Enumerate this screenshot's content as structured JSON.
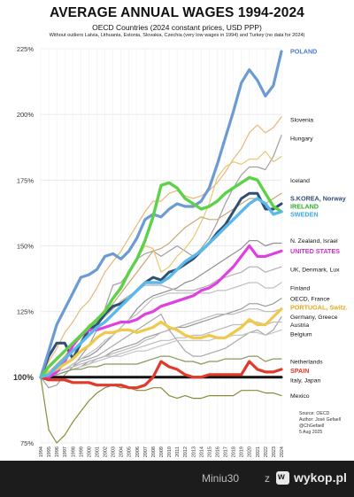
{
  "title": "AVERAGE ANNUAL WAGES 1994-2024",
  "subtitle": "OECD Countries (2024 constant prices, USD PPP)",
  "note": "Without outliers Latvia, Lithuania, Estonia, Slovakia, Czechia (very low wages in 1994) and Turkey (no data for 2024)",
  "source": [
    "Source: OECD",
    "Author: José Gefaell",
    "@ChGefaell",
    "5 Aug 2025"
  ],
  "footer": {
    "user": "Miniu30",
    "separator": "z",
    "brand": "wykop.pl",
    "logo_icon": "wykop-logo-icon"
  },
  "chart_data": {
    "type": "line",
    "x": [
      1994,
      1995,
      1996,
      1997,
      1998,
      1999,
      2000,
      2001,
      2002,
      2003,
      2004,
      2005,
      2006,
      2007,
      2008,
      2009,
      2010,
      2011,
      2012,
      2013,
      2014,
      2015,
      2016,
      2017,
      2018,
      2019,
      2020,
      2021,
      2022,
      2023,
      2024
    ],
    "x_tick_labels": [
      "1994",
      "1995",
      "1996",
      "1997",
      "1998",
      "1999",
      "2000",
      "2001",
      "2002",
      "2003",
      "2004",
      "2005",
      "2006",
      "2007",
      "2008",
      "2009",
      "2010",
      "2011",
      "2012",
      "2013",
      "2014",
      "2015",
      "2016",
      "2017",
      "2018",
      "2019",
      "2020",
      "2021",
      "2022",
      "2023",
      "2024"
    ],
    "ylim": [
      75,
      225
    ],
    "y_ticks": [
      75,
      100,
      125,
      150,
      175,
      200,
      225
    ],
    "y_tick_labels": [
      "75%",
      "100%",
      "125%",
      "150%",
      "175%",
      "200%",
      "225%"
    ],
    "baseline": 100,
    "series": [
      {
        "name": "POLAND",
        "color": "#6b9bd2",
        "width": 3.2,
        "values": [
          100,
          110,
          120,
          126,
          132,
          138,
          139,
          141,
          146,
          147,
          145,
          148,
          153,
          160,
          162,
          161,
          164,
          166,
          165,
          165,
          167,
          172,
          181,
          191,
          201,
          212,
          217,
          213,
          207,
          211,
          224
        ]
      },
      {
        "name": "S.KOREA",
        "color": "#2f4f73",
        "width": 3.0,
        "values": [
          100,
          108,
          113,
          113,
          107,
          113,
          118,
          120,
          124,
          127,
          128,
          130,
          133,
          136,
          138,
          137,
          140,
          141,
          143,
          145,
          148,
          151,
          155,
          158,
          163,
          168,
          170,
          170,
          164,
          164,
          166
        ]
      },
      {
        "name": "IRELAND",
        "color": "#5ed14a",
        "width": 3.4,
        "values": [
          100,
          104,
          107,
          110,
          113,
          116,
          119,
          122,
          125,
          130,
          134,
          140,
          145,
          152,
          161,
          173,
          174,
          172,
          168,
          166,
          164,
          165,
          167,
          170,
          172,
          174,
          176,
          175,
          170,
          165,
          163
        ]
      },
      {
        "name": "SWEDEN",
        "color": "#5bb8ea",
        "width": 3.4,
        "values": [
          100,
          101,
          104,
          107,
          110,
          113,
          116,
          119,
          121,
          124,
          127,
          130,
          133,
          136,
          136,
          136,
          138,
          141,
          144,
          146,
          148,
          151,
          154,
          157,
          160,
          163,
          166,
          168,
          166,
          162,
          163
        ]
      },
      {
        "name": "UNITED STATES",
        "color": "#e040e0",
        "width": 3.2,
        "values": [
          100,
          100,
          102,
          106,
          112,
          116,
          118,
          118,
          119,
          120,
          121,
          121,
          122,
          124,
          125,
          127,
          128,
          129,
          130,
          131,
          133,
          134,
          136,
          139,
          142,
          146,
          150,
          146,
          146,
          147,
          148
        ]
      },
      {
        "name": "PORTUGAL",
        "color": "#f0c84a",
        "width": 3.2,
        "values": [
          100,
          102,
          103,
          105,
          107,
          110,
          112,
          115,
          117,
          117,
          118,
          118,
          117,
          118,
          119,
          121,
          119,
          118,
          116,
          115,
          115,
          116,
          115,
          115,
          117,
          119,
          122,
          120,
          120,
          123,
          126
        ]
      },
      {
        "name": "SPAIN",
        "color": "#e03a2a",
        "width": 3.2,
        "values": [
          100,
          99,
          99,
          99,
          98,
          98,
          98,
          97,
          97,
          97,
          97,
          96,
          96,
          97,
          100,
          106,
          104,
          103,
          101,
          100,
          100,
          101,
          101,
          101,
          101,
          101,
          106,
          103,
          102,
          102,
          103
        ]
      },
      {
        "name": "Italy, Japan",
        "color": "#111111",
        "width": 3.0,
        "values": [
          100,
          100,
          100,
          100,
          100,
          100,
          100,
          100,
          100,
          100,
          100,
          100,
          100,
          100,
          100,
          100,
          100,
          100,
          100,
          100,
          100,
          100,
          100,
          100,
          100,
          100,
          100,
          100,
          100,
          100,
          100
        ]
      },
      {
        "name": "Mexico",
        "color": "#8a8a3a",
        "width": 1.2,
        "values": [
          100,
          80,
          75,
          78,
          83,
          87,
          91,
          94,
          96,
          97,
          96,
          96,
          95,
          95,
          96,
          96,
          93,
          92,
          93,
          92,
          92,
          93,
          93,
          93,
          93,
          95,
          95,
          95,
          94,
          94,
          93
        ]
      },
      {
        "name": "Slovenia",
        "color": "#e8b878",
        "width": 1.2,
        "values": [
          100,
          106,
          111,
          117,
          121,
          126,
          129,
          134,
          140,
          144,
          148,
          153,
          158,
          163,
          167,
          167,
          170,
          171,
          169,
          168,
          169,
          171,
          174,
          178,
          183,
          187,
          193,
          196,
          193,
          195,
          199
        ]
      },
      {
        "name": "Hungary",
        "color": "#a0a0a0",
        "width": 1.2,
        "values": [
          100,
          96,
          97,
          101,
          104,
          108,
          112,
          118,
          126,
          135,
          136,
          140,
          145,
          147,
          148,
          146,
          148,
          150,
          148,
          146,
          149,
          153,
          159,
          166,
          172,
          177,
          180,
          180,
          179,
          184,
          192
        ]
      },
      {
        "name": "Iceland",
        "color": "#e8c870",
        "width": 1.2,
        "values": [
          100,
          102,
          104,
          108,
          112,
          116,
          120,
          122,
          126,
          130,
          135,
          139,
          145,
          150,
          149,
          140,
          142,
          146,
          149,
          153,
          159,
          166,
          176,
          180,
          182,
          181,
          183,
          183,
          186,
          182,
          184
        ]
      },
      {
        "name": "Norway",
        "color": "#c8a878",
        "width": 1.2,
        "values": [
          100,
          102,
          105,
          108,
          112,
          115,
          118,
          121,
          124,
          128,
          132,
          136,
          140,
          144,
          148,
          149,
          151,
          154,
          157,
          159,
          161,
          160,
          160,
          162,
          164,
          166,
          168,
          168,
          166,
          168,
          170
        ]
      },
      {
        "name": "N. Zealand, Israel",
        "color": "#909090",
        "width": 1.2,
        "values": [
          100,
          101,
          102,
          103,
          105,
          107,
          108,
          110,
          113,
          116,
          119,
          122,
          126,
          129,
          131,
          132,
          133,
          134,
          136,
          137,
          139,
          141,
          143,
          145,
          147,
          149,
          152,
          152,
          150,
          151,
          151
        ]
      },
      {
        "name": "UK, Denmark, Lux",
        "color": "#b0b0b0",
        "width": 1.2,
        "values": [
          100,
          102,
          104,
          107,
          110,
          113,
          116,
          120,
          123,
          126,
          129,
          131,
          133,
          135,
          135,
          135,
          134,
          133,
          133,
          133,
          134,
          135,
          137,
          138,
          139,
          140,
          142,
          142,
          140,
          141,
          142
        ]
      },
      {
        "name": "Finland",
        "color": "#c0c0c0",
        "width": 1.2,
        "values": [
          100,
          101,
          102,
          103,
          105,
          107,
          109,
          111,
          114,
          116,
          119,
          122,
          124,
          127,
          130,
          131,
          132,
          132,
          132,
          132,
          132,
          132,
          133,
          133,
          134,
          135,
          136,
          136,
          134,
          134,
          136
        ]
      },
      {
        "name": "OECD, France",
        "color": "#9a9a9a",
        "width": 1.2,
        "values": [
          100,
          100,
          101,
          102,
          103,
          104,
          106,
          107,
          108,
          110,
          111,
          112,
          113,
          115,
          116,
          117,
          118,
          119,
          119,
          120,
          121,
          122,
          123,
          124,
          125,
          126,
          128,
          128,
          127,
          128,
          130
        ]
      },
      {
        "name": "Switz.",
        "color": "#b8b8b8",
        "width": 1.2,
        "values": [
          100,
          101,
          101,
          102,
          103,
          104,
          105,
          107,
          108,
          109,
          110,
          111,
          112,
          114,
          115,
          117,
          118,
          119,
          120,
          121,
          122,
          123,
          124,
          124,
          124,
          125,
          126,
          126,
          125,
          125,
          126
        ]
      },
      {
        "name": "Germany, Greece",
        "color": "#a8a8a8",
        "width": 1.2,
        "values": [
          100,
          101,
          102,
          103,
          104,
          106,
          107,
          108,
          110,
          112,
          114,
          116,
          118,
          120,
          122,
          124,
          118,
          114,
          110,
          108,
          108,
          109,
          110,
          111,
          113,
          115,
          117,
          118,
          116,
          118,
          123
        ]
      },
      {
        "name": "Austria",
        "color": "#bcbcbc",
        "width": 1.2,
        "values": [
          100,
          101,
          102,
          103,
          104,
          105,
          106,
          107,
          108,
          108,
          109,
          110,
          111,
          112,
          113,
          114,
          114,
          115,
          115,
          116,
          116,
          117,
          118,
          119,
          120,
          120,
          121,
          121,
          120,
          121,
          121
        ]
      },
      {
        "name": "Belgium",
        "color": "#c4c4c4",
        "width": 1.2,
        "values": [
          100,
          100,
          101,
          102,
          103,
          104,
          105,
          106,
          107,
          108,
          108,
          109,
          110,
          110,
          111,
          112,
          113,
          114,
          114,
          114,
          114,
          114,
          115,
          115,
          116,
          116,
          117,
          117,
          116,
          117,
          118
        ]
      },
      {
        "name": "Netherlands",
        "color": "#8a9a5a",
        "width": 1.2,
        "values": [
          100,
          101,
          101,
          102,
          103,
          103,
          104,
          104,
          105,
          105,
          105,
          105,
          105,
          106,
          107,
          108,
          108,
          107,
          106,
          106,
          105,
          106,
          106,
          107,
          107,
          107,
          108,
          108,
          106,
          107,
          107
        ]
      }
    ],
    "labels": [
      {
        "text": "POLAND",
        "value": 224,
        "color": "#4a7ec0",
        "bold": true
      },
      {
        "text": "Slovenia",
        "value": 198,
        "color": "#111111",
        "bold": false
      },
      {
        "text": "Hungary",
        "value": 191,
        "color": "#111111",
        "bold": false
      },
      {
        "text": "Iceland",
        "value": 175,
        "color": "#111111",
        "bold": false
      },
      {
        "text": "S.KOREA, Norway",
        "value": 168,
        "color": "#2f4f73",
        "bold": true
      },
      {
        "text": "IRELAND",
        "value": 165,
        "color": "#2fae2a",
        "bold": true
      },
      {
        "text": "SWEDEN",
        "value": 162,
        "color": "#3aa8e0",
        "bold": true
      },
      {
        "text": "N. Zealand, Israel",
        "value": 152,
        "color": "#111111",
        "bold": false
      },
      {
        "text": "UNITED STATES",
        "value": 148,
        "color": "#d030d0",
        "bold": true
      },
      {
        "text": "UK, Denmark, Lux",
        "value": 141,
        "color": "#111111",
        "bold": false
      },
      {
        "text": "Finland",
        "value": 134,
        "color": "#111111",
        "bold": false
      },
      {
        "text": "OECD, France",
        "value": 130,
        "color": "#111111",
        "bold": false
      },
      {
        "text": "PORTUGAL, Switz.",
        "value": 126.5,
        "color": "#e0a820",
        "bold": true
      },
      {
        "text": "Germany, Greece",
        "value": 123,
        "color": "#111111",
        "bold": false
      },
      {
        "text": "Austria",
        "value": 120,
        "color": "#111111",
        "bold": false
      },
      {
        "text": "Belgium",
        "value": 116.5,
        "color": "#111111",
        "bold": false
      },
      {
        "text": "Netherlands",
        "value": 106,
        "color": "#111111",
        "bold": false
      },
      {
        "text": "SPAIN",
        "value": 102.5,
        "color": "#e03a2a",
        "bold": true
      },
      {
        "text": "Italy, Japan",
        "value": 99,
        "color": "#111111",
        "bold": false
      },
      {
        "text": "Mexico",
        "value": 93,
        "color": "#111111",
        "bold": false
      }
    ]
  }
}
